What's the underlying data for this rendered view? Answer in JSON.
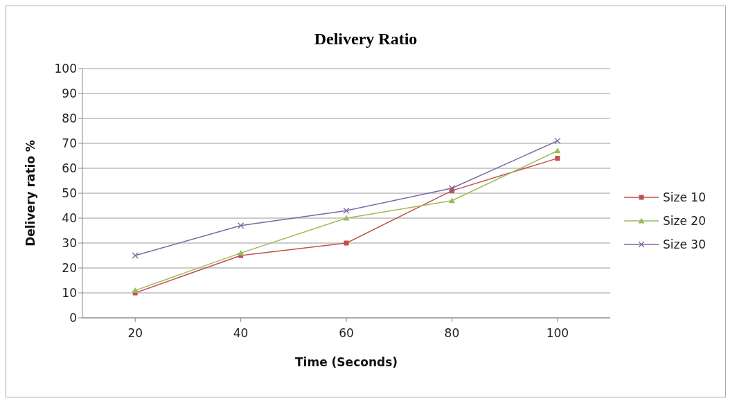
{
  "chart_data": {
    "type": "line",
    "title": "Delivery Ratio",
    "xlabel": "Time (Seconds)",
    "ylabel": "Delivery ratio %",
    "categories": [
      "20",
      "40",
      "60",
      "80",
      "100"
    ],
    "series": [
      {
        "name": "Size 10",
        "color": "#c0504d",
        "marker": "square",
        "values": [
          10,
          25,
          30,
          51,
          64
        ]
      },
      {
        "name": "Size 20",
        "color": "#9bbb59",
        "marker": "triangle",
        "values": [
          11,
          26,
          40,
          47,
          67
        ]
      },
      {
        "name": "Size 30",
        "color": "#8064a2",
        "marker": "cross",
        "values": [
          25,
          37,
          43,
          52,
          71
        ]
      }
    ],
    "ylim": [
      0,
      100
    ],
    "yticks": [
      0,
      10,
      20,
      30,
      40,
      50,
      60,
      70,
      80,
      90,
      100
    ],
    "grid": "y",
    "legend": "right"
  }
}
